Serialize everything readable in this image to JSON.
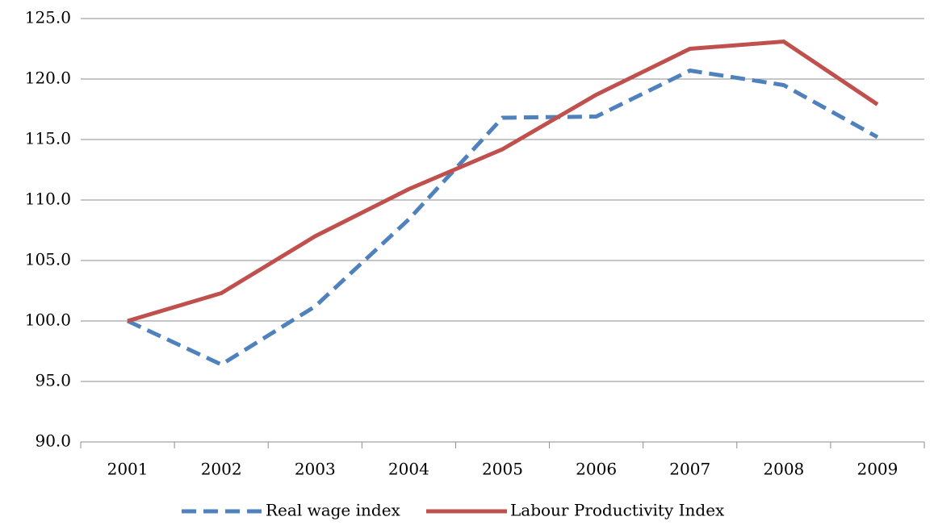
{
  "chart_data": {
    "type": "line",
    "categories": [
      "2001",
      "2002",
      "2003",
      "2004",
      "2005",
      "2006",
      "2007",
      "2008",
      "2009"
    ],
    "series": [
      {
        "name": "Real wage index",
        "color": "#4f81bd",
        "dashed": true,
        "values": [
          100.0,
          96.4,
          101.2,
          108.4,
          116.8,
          116.9,
          120.7,
          119.5,
          115.2
        ]
      },
      {
        "name": "Labour Productivity Index",
        "color": "#c0504d",
        "dashed": false,
        "values": [
          100.0,
          102.3,
          107.0,
          110.9,
          114.2,
          118.7,
          122.5,
          123.1,
          117.9
        ]
      }
    ],
    "ylim": [
      90,
      125
    ],
    "yticks": [
      {
        "value": 90,
        "label": "90.0"
      },
      {
        "value": 95,
        "label": "95.0"
      },
      {
        "value": 100,
        "label": "100.0"
      },
      {
        "value": 105,
        "label": "105.0"
      },
      {
        "value": 110,
        "label": "110.0"
      },
      {
        "value": 115,
        "label": "115.0"
      },
      {
        "value": 120,
        "label": "120.0"
      },
      {
        "value": 125,
        "label": "125.0"
      }
    ],
    "grid": true,
    "legend": "bottom"
  }
}
